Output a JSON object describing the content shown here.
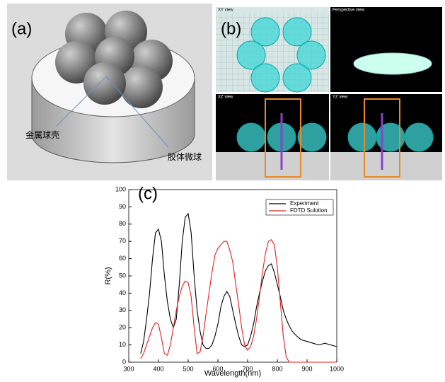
{
  "panel_a": {
    "label": "(a)",
    "annotations": [
      "金属球壳",
      "胶体微球"
    ]
  },
  "panel_b": {
    "label": "(b)",
    "views": [
      "XY view",
      "Perspective view",
      "XZ view",
      "YZ view"
    ]
  },
  "chart_data": {
    "type": "line",
    "label": "(c)",
    "xlabel": "Wavelength(nm)",
    "ylabel": "R(%)",
    "xlim": [
      300,
      1000
    ],
    "xticks": [
      300,
      400,
      500,
      600,
      700,
      800,
      900,
      1000
    ],
    "ylim": [
      0,
      100
    ],
    "yticks": [
      0,
      10,
      20,
      30,
      40,
      50,
      60,
      70,
      80,
      90,
      100
    ],
    "legend": "upper right",
    "series": [
      {
        "name": "Experiment",
        "color": "#000000",
        "x": [
          340,
          350,
          360,
          370,
          380,
          390,
          400,
          410,
          420,
          430,
          440,
          450,
          460,
          470,
          480,
          490,
          500,
          510,
          520,
          530,
          540,
          550,
          560,
          570,
          580,
          590,
          600,
          610,
          620,
          630,
          640,
          650,
          660,
          670,
          680,
          690,
          700,
          710,
          720,
          730,
          740,
          750,
          760,
          770,
          780,
          790,
          800,
          810,
          820,
          830,
          840,
          850,
          860,
          880,
          900,
          920,
          940,
          960,
          980,
          1000
        ],
        "values": [
          5,
          12,
          25,
          40,
          60,
          75,
          77,
          70,
          50,
          35,
          25,
          20,
          25,
          45,
          70,
          84,
          86,
          75,
          50,
          30,
          18,
          10,
          8,
          8,
          10,
          15,
          22,
          32,
          38,
          41,
          38,
          30,
          22,
          15,
          10,
          9,
          10,
          15,
          22,
          32,
          40,
          47,
          53,
          56,
          57,
          52,
          45,
          38,
          30,
          25,
          21,
          18,
          16,
          13,
          12,
          11,
          10,
          11,
          10,
          9
        ]
      },
      {
        "name": "FDTD Sulotion",
        "color": "#e0201b",
        "x": [
          340,
          350,
          360,
          370,
          380,
          390,
          400,
          410,
          420,
          430,
          440,
          450,
          460,
          470,
          480,
          490,
          500,
          510,
          520,
          530,
          540,
          550,
          560,
          570,
          580,
          590,
          600,
          610,
          620,
          630,
          640,
          650,
          660,
          670,
          680,
          690,
          700,
          710,
          720,
          730,
          740,
          750,
          760,
          770,
          780,
          790,
          800,
          810,
          820,
          830,
          840,
          1000
        ],
        "values": [
          2,
          5,
          10,
          15,
          20,
          23,
          22,
          14,
          5,
          4,
          10,
          20,
          30,
          38,
          44,
          47,
          46,
          38,
          20,
          5,
          6,
          15,
          28,
          40,
          52,
          62,
          66,
          68,
          70,
          70,
          65,
          58,
          45,
          33,
          20,
          10,
          7,
          9,
          15,
          25,
          38,
          52,
          63,
          70,
          71,
          68,
          55,
          35,
          15,
          3,
          0,
          0
        ]
      }
    ]
  }
}
